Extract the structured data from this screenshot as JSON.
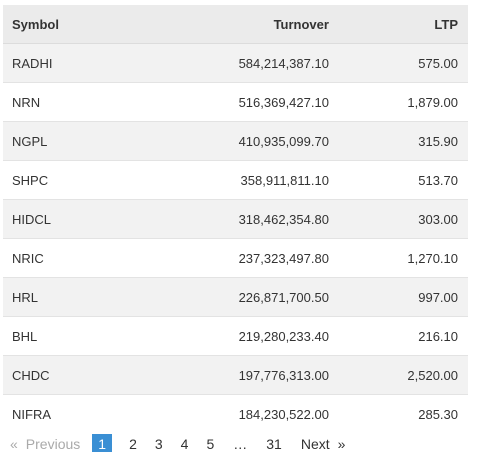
{
  "table": {
    "headers": {
      "symbol": "Symbol",
      "turnover": "Turnover",
      "ltp": "LTP"
    },
    "rows": [
      {
        "symbol": "RADHI",
        "turnover": "584,214,387.10",
        "ltp": "575.00"
      },
      {
        "symbol": "NRN",
        "turnover": "516,369,427.10",
        "ltp": "1,879.00"
      },
      {
        "symbol": "NGPL",
        "turnover": "410,935,099.70",
        "ltp": "315.90"
      },
      {
        "symbol": "SHPC",
        "turnover": "358,911,811.10",
        "ltp": "513.70"
      },
      {
        "symbol": "HIDCL",
        "turnover": "318,462,354.80",
        "ltp": "303.00"
      },
      {
        "symbol": "NRIC",
        "turnover": "237,323,497.80",
        "ltp": "1,270.10"
      },
      {
        "symbol": "HRL",
        "turnover": "226,871,700.50",
        "ltp": "997.00"
      },
      {
        "symbol": "BHL",
        "turnover": "219,280,233.40",
        "ltp": "216.10"
      },
      {
        "symbol": "CHDC",
        "turnover": "197,776,313.00",
        "ltp": "2,520.00"
      },
      {
        "symbol": "NIFRA",
        "turnover": "184,230,522.00",
        "ltp": "285.30"
      }
    ]
  },
  "pagination": {
    "prev_arrow": "«",
    "prev_label": "Previous",
    "pages": [
      "1",
      "2",
      "3",
      "4",
      "5"
    ],
    "current": "1",
    "ellipsis": "…",
    "last_page": "31",
    "next_label": "Next",
    "next_arrow": "»",
    "accent_color": "#3a8fd4"
  }
}
